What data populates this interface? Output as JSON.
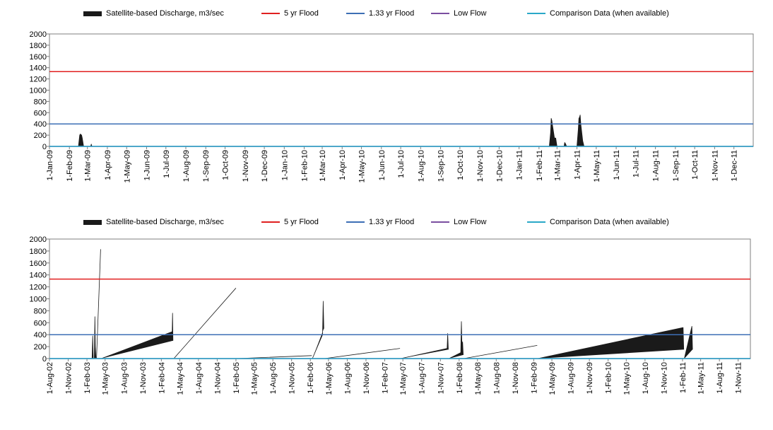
{
  "colors": {
    "discharge": "#1a1a1a",
    "flood5": "#e02020",
    "flood133": "#3d6fb5",
    "lowflow": "#7a4ea0",
    "comparison": "#2aa8c8",
    "axis": "#7f7f7f"
  },
  "chart_data": [
    {
      "type": "area",
      "legend": [
        {
          "name": "Satellite-based Discharge, m3/sec",
          "kind": "area",
          "color": "#1a1a1a"
        },
        {
          "name": "5 yr Flood",
          "kind": "line",
          "color": "#e02020"
        },
        {
          "name": "1.33 yr Flood",
          "kind": "line",
          "color": "#3d6fb5"
        },
        {
          "name": "Low Flow",
          "kind": "line",
          "color": "#7a4ea0"
        },
        {
          "name": "Comparison Data (when available)",
          "kind": "line",
          "color": "#2aa8c8"
        }
      ],
      "legend_position": "top",
      "ylim": [
        0,
        2000
      ],
      "yticks": [
        "2000",
        "1800",
        "1600",
        "1400",
        "1200",
        "1000",
        "800",
        "600",
        "400",
        "200",
        "0"
      ],
      "xlim": [
        "2009-01-01",
        "2011-12-31"
      ],
      "xticks": [
        "1-Jan-09",
        "1-Feb-09",
        "1-Mar-09",
        "1-Apr-09",
        "1-May-09",
        "1-Jun-09",
        "1-Jul-09",
        "1-Aug-09",
        "1-Sep-09",
        "1-Oct-09",
        "1-Nov-09",
        "1-Dec-09",
        "1-Jan-10",
        "1-Feb-10",
        "1-Mar-10",
        "1-Apr-10",
        "1-May-10",
        "1-Jun-10",
        "1-Jul-10",
        "1-Aug-10",
        "1-Sep-10",
        "1-Oct-10",
        "1-Nov-10",
        "1-Dec-10",
        "1-Jan-11",
        "1-Feb-11",
        "1-Mar-11",
        "1-Apr-11",
        "1-May-11",
        "1-Jun-11",
        "1-Jul-11",
        "1-Aug-11",
        "1-Sep-11",
        "1-Oct-11",
        "1-Nov-11",
        "1-Dec-11"
      ],
      "xtick_dates": [
        "2009-01-01",
        "2009-02-01",
        "2009-03-01",
        "2009-04-01",
        "2009-05-01",
        "2009-06-01",
        "2009-07-01",
        "2009-08-01",
        "2009-09-01",
        "2009-10-01",
        "2009-11-01",
        "2009-12-01",
        "2010-01-01",
        "2010-02-01",
        "2010-03-01",
        "2010-04-01",
        "2010-05-01",
        "2010-06-01",
        "2010-07-01",
        "2010-08-01",
        "2010-09-01",
        "2010-10-01",
        "2010-11-01",
        "2010-12-01",
        "2011-01-01",
        "2011-02-01",
        "2011-03-01",
        "2011-04-01",
        "2011-05-01",
        "2011-06-01",
        "2011-07-01",
        "2011-08-01",
        "2011-09-01",
        "2011-10-01",
        "2011-11-01",
        "2011-12-01"
      ],
      "hlines": {
        "flood5": 1330,
        "flood133": 400,
        "lowflow": 0,
        "comparison": 0
      },
      "series": [
        {
          "name": "Satellite-based Discharge, m3/sec",
          "x": [
            "2009-02-15",
            "2009-02-17",
            "2009-02-18",
            "2009-02-19",
            "2009-02-20",
            "2009-02-21",
            "2009-02-23",
            "2009-03-06",
            "2009-03-07",
            "2009-03-08",
            "2011-02-17",
            "2011-02-19",
            "2011-02-20",
            "2011-02-21",
            "2011-02-22",
            "2011-02-23",
            "2011-02-25",
            "2011-02-27",
            "2011-03-01",
            "2011-03-12",
            "2011-03-13",
            "2011-03-14",
            "2011-03-16",
            "2011-04-01",
            "2011-04-03",
            "2011-04-04",
            "2011-04-05",
            "2011-04-06",
            "2011-04-07",
            "2011-04-08",
            "2011-04-10",
            "2011-04-12"
          ],
          "y": [
            0,
            200,
            220,
            210,
            200,
            150,
            0,
            0,
            40,
            0,
            0,
            240,
            500,
            460,
            380,
            300,
            150,
            150,
            0,
            0,
            70,
            50,
            0,
            0,
            300,
            500,
            520,
            560,
            400,
            300,
            100,
            0
          ]
        }
      ]
    },
    {
      "type": "area",
      "legend": [
        {
          "name": "Satellite-based Discharge, m3/sec",
          "kind": "area",
          "color": "#1a1a1a"
        },
        {
          "name": "5 yr Flood",
          "kind": "line",
          "color": "#e02020"
        },
        {
          "name": "1.33 yr Flood",
          "kind": "line",
          "color": "#3d6fb5"
        },
        {
          "name": "Low Flow",
          "kind": "line",
          "color": "#7a4ea0"
        },
        {
          "name": "Comparison Data (when available)",
          "kind": "line",
          "color": "#2aa8c8"
        }
      ],
      "legend_position": "top",
      "ylim": [
        0,
        2000
      ],
      "yticks": [
        "2000",
        "1800",
        "1600",
        "1400",
        "1200",
        "1000",
        "800",
        "600",
        "400",
        "200",
        "0"
      ],
      "xlim": [
        "2002-08-01",
        "2011-12-31"
      ],
      "xticks": [
        "1-Aug-02",
        "1-Nov-02",
        "1-Feb-03",
        "1-May-03",
        "1-Aug-03",
        "1-Nov-03",
        "1-Feb-04",
        "1-May-04",
        "1-Aug-04",
        "1-Nov-04",
        "1-Feb-05",
        "1-May-05",
        "1-Aug-05",
        "1-Nov-05",
        "1-Feb-06",
        "1-May-06",
        "1-Aug-06",
        "1-Nov-06",
        "1-Feb-07",
        "1-May-07",
        "1-Aug-07",
        "1-Nov-07",
        "1-Feb-08",
        "1-May-08",
        "1-Aug-08",
        "1-Nov-08",
        "1-Feb-09",
        "1-May-09",
        "1-Aug-09",
        "1-Nov-09",
        "1-Feb-10",
        "1-May-10",
        "1-Aug-10",
        "1-Nov-10",
        "1-Feb-11",
        "1-May-11",
        "1-Aug-11",
        "1-Nov-11"
      ],
      "xtick_dates": [
        "2002-08-01",
        "2002-11-01",
        "2003-02-01",
        "2003-05-01",
        "2003-08-01",
        "2003-11-01",
        "2004-02-01",
        "2004-05-01",
        "2004-08-01",
        "2004-11-01",
        "2005-02-01",
        "2005-05-01",
        "2005-08-01",
        "2005-11-01",
        "2006-02-01",
        "2006-05-01",
        "2006-08-01",
        "2006-11-01",
        "2007-02-01",
        "2007-05-01",
        "2007-08-01",
        "2007-11-01",
        "2008-02-01",
        "2008-05-01",
        "2008-08-01",
        "2008-11-01",
        "2009-02-01",
        "2009-05-01",
        "2009-08-01",
        "2009-11-01",
        "2010-02-01",
        "2010-05-01",
        "2010-08-01",
        "2010-11-01",
        "2011-02-01",
        "2011-05-01",
        "2011-08-01",
        "2011-11-01"
      ],
      "hlines": {
        "flood5": 1330,
        "flood133": 400,
        "lowflow": 0,
        "comparison": 0
      },
      "series": [
        {
          "name": "Satellite-based Discharge, m3/sec",
          "x": [
            "2003-02-26",
            "2003-03-01",
            "2003-03-04",
            "2003-03-09",
            "2003-03-12",
            "2003-03-14",
            "2003-03-17",
            "2003-03-20",
            "2003-04-06",
            "2003-04-09",
            "2003-04-12",
            "2004-03-21",
            "2004-03-25",
            "2004-03-27",
            "2004-03-29",
            "2004-04-02",
            "2005-01-29",
            "2005-02-01",
            "2005-02-04",
            "2006-02-05",
            "2006-02-08",
            "2006-02-11",
            "2006-03-30",
            "2006-04-02",
            "2006-04-05",
            "2006-04-08",
            "2006-04-11",
            "2007-04-14",
            "2007-04-17",
            "2007-04-20",
            "2007-12-01",
            "2007-12-04",
            "2007-12-07",
            "2007-12-10",
            "2007-12-13",
            "2008-02-06",
            "2008-02-09",
            "2008-02-12",
            "2008-02-15",
            "2008-02-18",
            "2008-02-21",
            "2008-02-24",
            "2009-02-15",
            "2009-02-18",
            "2009-02-21",
            "2011-02-01",
            "2011-02-04",
            "2011-02-07",
            "2011-02-10",
            "2011-03-16",
            "2011-03-19",
            "2011-03-22",
            "2011-03-25"
          ],
          "y": [
            0,
            380,
            0,
            0,
            700,
            200,
            0,
            0,
            0,
            1830,
            0,
            0,
            450,
            760,
            300,
            0,
            0,
            1180,
            0,
            0,
            50,
            0,
            0,
            400,
            960,
            500,
            0,
            0,
            170,
            0,
            0,
            170,
            420,
            150,
            0,
            0,
            100,
            620,
            200,
            280,
            60,
            0,
            0,
            220,
            0,
            0,
            520,
            150,
            0,
            0,
            540,
            150,
            0
          ]
        }
      ]
    }
  ]
}
